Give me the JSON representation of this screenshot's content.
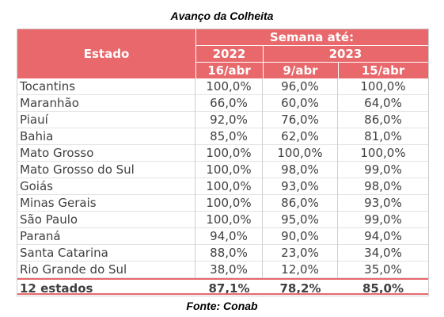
{
  "title": "Avanço da Colheita",
  "source": "Fonte: Conab",
  "header": {
    "estado": "Estado",
    "semana": "Semana até:",
    "year_2022": "2022",
    "year_2023": "2023",
    "col1": "16/abr",
    "col2": "9/abr",
    "col3": "15/abr"
  },
  "rows": [
    {
      "estado": "Tocantins",
      "v1": "100,0%",
      "v2": "96,0%",
      "v3": "100,0%"
    },
    {
      "estado": "Maranhão",
      "v1": "66,0%",
      "v2": "60,0%",
      "v3": "64,0%"
    },
    {
      "estado": "Piauí",
      "v1": "92,0%",
      "v2": "76,0%",
      "v3": "86,0%"
    },
    {
      "estado": "Bahia",
      "v1": "85,0%",
      "v2": "62,0%",
      "v3": "81,0%"
    },
    {
      "estado": "Mato Grosso",
      "v1": "100,0%",
      "v2": "100,0%",
      "v3": "100,0%"
    },
    {
      "estado": "Mato Grosso do Sul",
      "v1": "100,0%",
      "v2": "98,0%",
      "v3": "99,0%"
    },
    {
      "estado": "Goiás",
      "v1": "100,0%",
      "v2": "93,0%",
      "v3": "98,0%"
    },
    {
      "estado": "Minas Gerais",
      "v1": "100,0%",
      "v2": "86,0%",
      "v3": "93,0%"
    },
    {
      "estado": "São Paulo",
      "v1": "100,0%",
      "v2": "95,0%",
      "v3": "99,0%"
    },
    {
      "estado": "Paraná",
      "v1": "94,0%",
      "v2": "90,0%",
      "v3": "94,0%"
    },
    {
      "estado": "Santa Catarina",
      "v1": "88,0%",
      "v2": "23,0%",
      "v3": "34,0%"
    },
    {
      "estado": "Rio Grande do Sul",
      "v1": "38,0%",
      "v2": "12,0%",
      "v3": "35,0%"
    }
  ],
  "total": {
    "estado": "12 estados",
    "v1": "87,1%",
    "v2": "78,2%",
    "v3": "85,0%"
  },
  "colors": {
    "header_bg": "#e8686b",
    "text": "#404040"
  }
}
